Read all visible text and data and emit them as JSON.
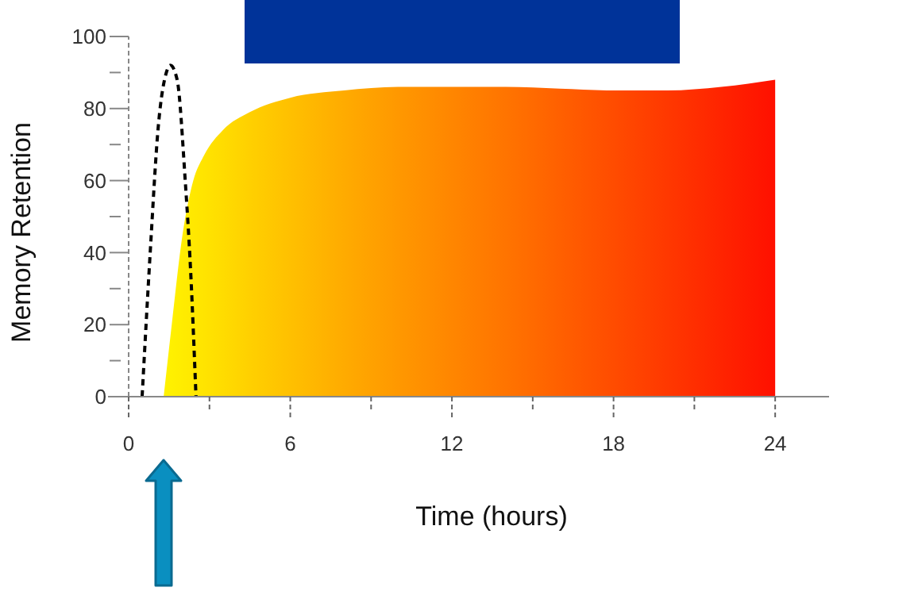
{
  "chart_data": {
    "type": "area",
    "xlabel": "Time (hours)",
    "ylabel": "Memory Retention",
    "xlim": [
      0,
      26
    ],
    "ylim": [
      0,
      100
    ],
    "xticks": [
      0,
      {
        "value": 3,
        "label": null
      },
      6,
      {
        "value": 9,
        "label": null
      },
      12,
      {
        "value": 15,
        "label": null
      },
      18,
      {
        "value": 21,
        "label": null
      },
      24
    ],
    "yticks": [
      0,
      {
        "value": 10,
        "label": null
      },
      20,
      {
        "value": 30,
        "label": null
      },
      40,
      {
        "value": 50,
        "label": null
      },
      60,
      {
        "value": 70,
        "label": null
      },
      80,
      {
        "value": 90,
        "label": null
      },
      100
    ],
    "grid": false,
    "series": [
      {
        "x": [
          1.3,
          1.6,
          2.0,
          2.4,
          2.8,
          3.5,
          4.5,
          6,
          8,
          10,
          12,
          14,
          16,
          18,
          20,
          22,
          24
        ],
        "values": [
          0,
          20,
          45,
          60,
          67,
          74,
          79,
          83,
          85,
          86,
          86,
          86,
          85.5,
          85,
          85,
          86,
          88
        ],
        "colors": [
          "#fff200",
          "#fff000",
          "#ffec00",
          "#ffe800",
          "#ffe400",
          "#ffdc00",
          "#ffd000",
          "#ffc000",
          "#ffab00",
          "#ff9800",
          "#ff8600",
          "#ff7400",
          "#ff6000",
          "#ff4c00",
          "#ff3800",
          "#ff2400",
          "#ff1000"
        ]
      },
      {
        "type": "line",
        "line_style": "dashed",
        "color": "#000000",
        "x": [
          0.5,
          0.8,
          1.1,
          1.4,
          1.55,
          1.8,
          2.1,
          2.3,
          2.5
        ],
        "values": [
          0,
          40,
          75,
          90,
          92,
          88,
          60,
          35,
          0
        ]
      }
    ]
  }
}
